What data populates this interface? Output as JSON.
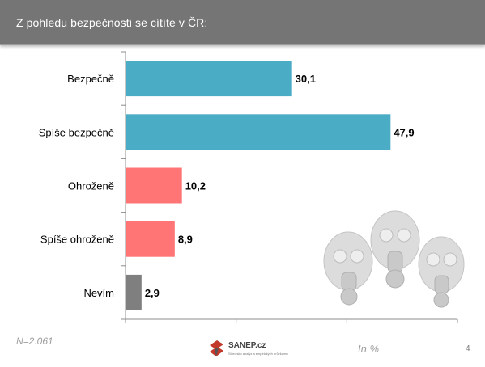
{
  "header": {
    "title": "Z pohledu bezpečnosti  se cítíte v ČR:"
  },
  "footer": {
    "sample": "N=2.061",
    "unit": "In %",
    "page_number": "4",
    "logo_text": "SANEP.cz",
    "logo_subtext": "Středisko analýz a empirických průzkumů"
  },
  "illustration": {
    "icon": "gas-masks-illustration"
  },
  "chart_data": {
    "type": "bar",
    "orientation": "horizontal",
    "categories": [
      "Bezpečně",
      "Spíše bezpečně",
      "Ohroženě",
      "Spíše ohroženě",
      "Nevím"
    ],
    "values": [
      30.1,
      47.9,
      10.2,
      8.9,
      2.9
    ],
    "value_labels": [
      "30,1",
      "47,9",
      "10,2",
      "8,9",
      "2,9"
    ],
    "colors": [
      "#4bacc6",
      "#4bacc6",
      "#ff7575",
      "#ff7575",
      "#7f7f7f"
    ],
    "xlim": [
      0,
      60
    ],
    "xlabel": "",
    "ylabel": "",
    "grid": false
  }
}
